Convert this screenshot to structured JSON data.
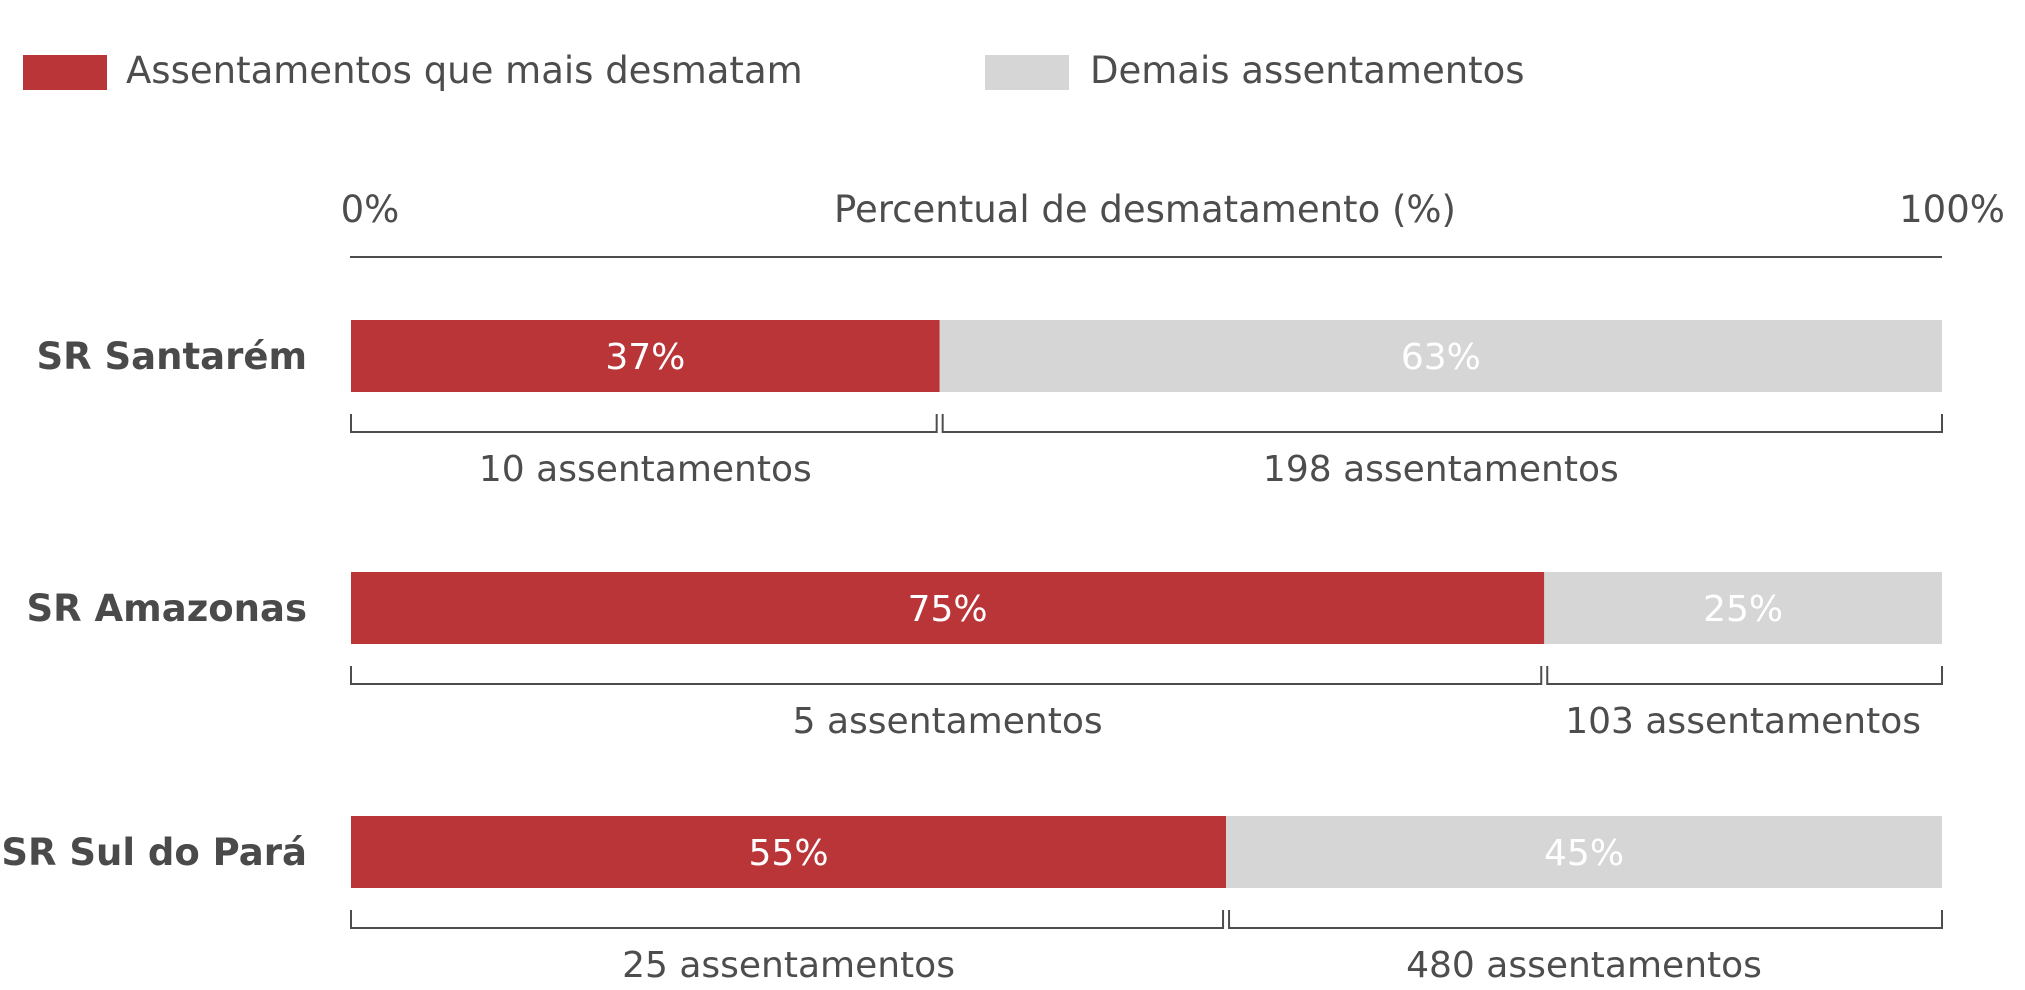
{
  "chart_data": {
    "type": "bar",
    "orientation": "horizontal",
    "stacked": true,
    "normalized_percent": true,
    "title": "",
    "axis_label": "Percentual de desmatamento (%)",
    "axis_ticks": [
      "0%",
      "100%"
    ],
    "xlim": [
      0,
      100
    ],
    "legend": [
      {
        "name": "Assentamentos que mais desmatam",
        "color": "#ba3538"
      },
      {
        "name": "Demais assentamentos",
        "color": "#d6d6d6"
      }
    ],
    "legend_position": "top-left",
    "categories": [
      "SR Santarém",
      "SR Amazonas",
      "SR Sul do Pará"
    ],
    "series": [
      {
        "name": "Assentamentos que mais desmatam",
        "values": [
          37,
          75,
          55
        ],
        "labels": [
          "37%",
          "75%",
          "55%"
        ],
        "counts": [
          "10 assentamentos",
          "5 assentamentos",
          "25 assentamentos"
        ]
      },
      {
        "name": "Demais assentamentos",
        "values": [
          63,
          25,
          45
        ],
        "labels": [
          "63%",
          "25%",
          "45%"
        ],
        "counts": [
          "198 assentamentos",
          "103 assentamentos",
          "480 assentamentos"
        ]
      }
    ]
  },
  "colors": {
    "primary": "#ba3538",
    "secondary": "#d6d6d6",
    "text": "#4d4d4d",
    "axis": "#4d4d4d"
  }
}
